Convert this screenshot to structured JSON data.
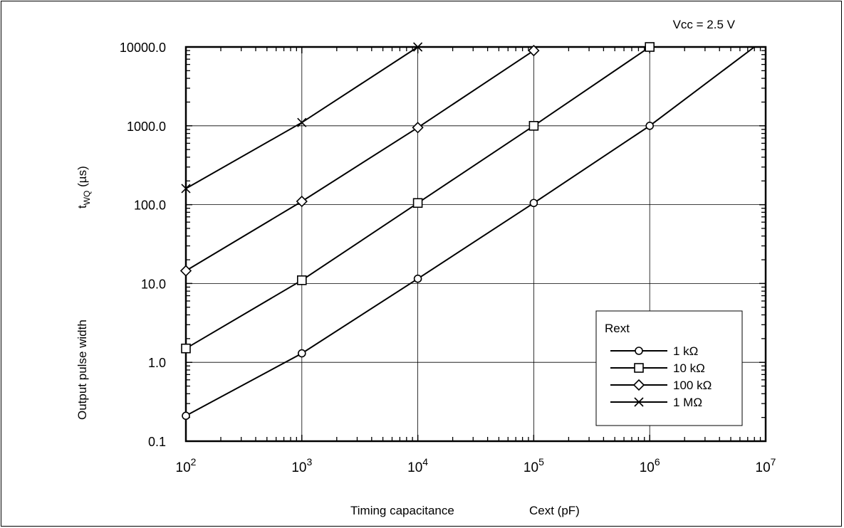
{
  "chart_data": {
    "type": "line",
    "annotation": "Vcc = 2.5 V",
    "xlabel_part1": "Timing capacitance",
    "xlabel_part2": "Cext (pF)",
    "ylabel_part1": "Output pulse width",
    "ylabel_part2": "t",
    "ylabel_sub": "WQ",
    "ylabel_unit": " (µs)",
    "x_scale": "log",
    "y_scale": "log",
    "xlim": [
      100,
      10000000
    ],
    "ylim": [
      0.1,
      10000
    ],
    "x_ticks": [
      {
        "base": "10",
        "exp": "2"
      },
      {
        "base": "10",
        "exp": "3"
      },
      {
        "base": "10",
        "exp": "4"
      },
      {
        "base": "10",
        "exp": "5"
      },
      {
        "base": "10",
        "exp": "6"
      },
      {
        "base": "10",
        "exp": "7"
      }
    ],
    "y_ticks": [
      "0.1",
      "1.0",
      "10.0",
      "100.0",
      "1000.0",
      "10000.0"
    ],
    "grid": true,
    "legend_title": "Rext",
    "legend_position": "bottom-right",
    "series": [
      {
        "name": "1 kΩ",
        "marker": "circle",
        "x": [
          100,
          1000,
          10000,
          100000,
          1000000,
          8000000
        ],
        "y": [
          0.21,
          1.3,
          11.5,
          105,
          1000,
          10000
        ]
      },
      {
        "name": "10 kΩ",
        "marker": "square",
        "x": [
          100,
          1000,
          10000,
          100000,
          1000000
        ],
        "y": [
          1.5,
          11,
          105,
          1000,
          10000
        ]
      },
      {
        "name": "100 kΩ",
        "marker": "diamond",
        "x": [
          100,
          1000,
          10000,
          100000
        ],
        "y": [
          14.5,
          110,
          950,
          9000
        ]
      },
      {
        "name": "1 MΩ",
        "marker": "cross",
        "x": [
          100,
          1000,
          10000
        ],
        "y": [
          160,
          1100,
          10000
        ]
      }
    ]
  }
}
